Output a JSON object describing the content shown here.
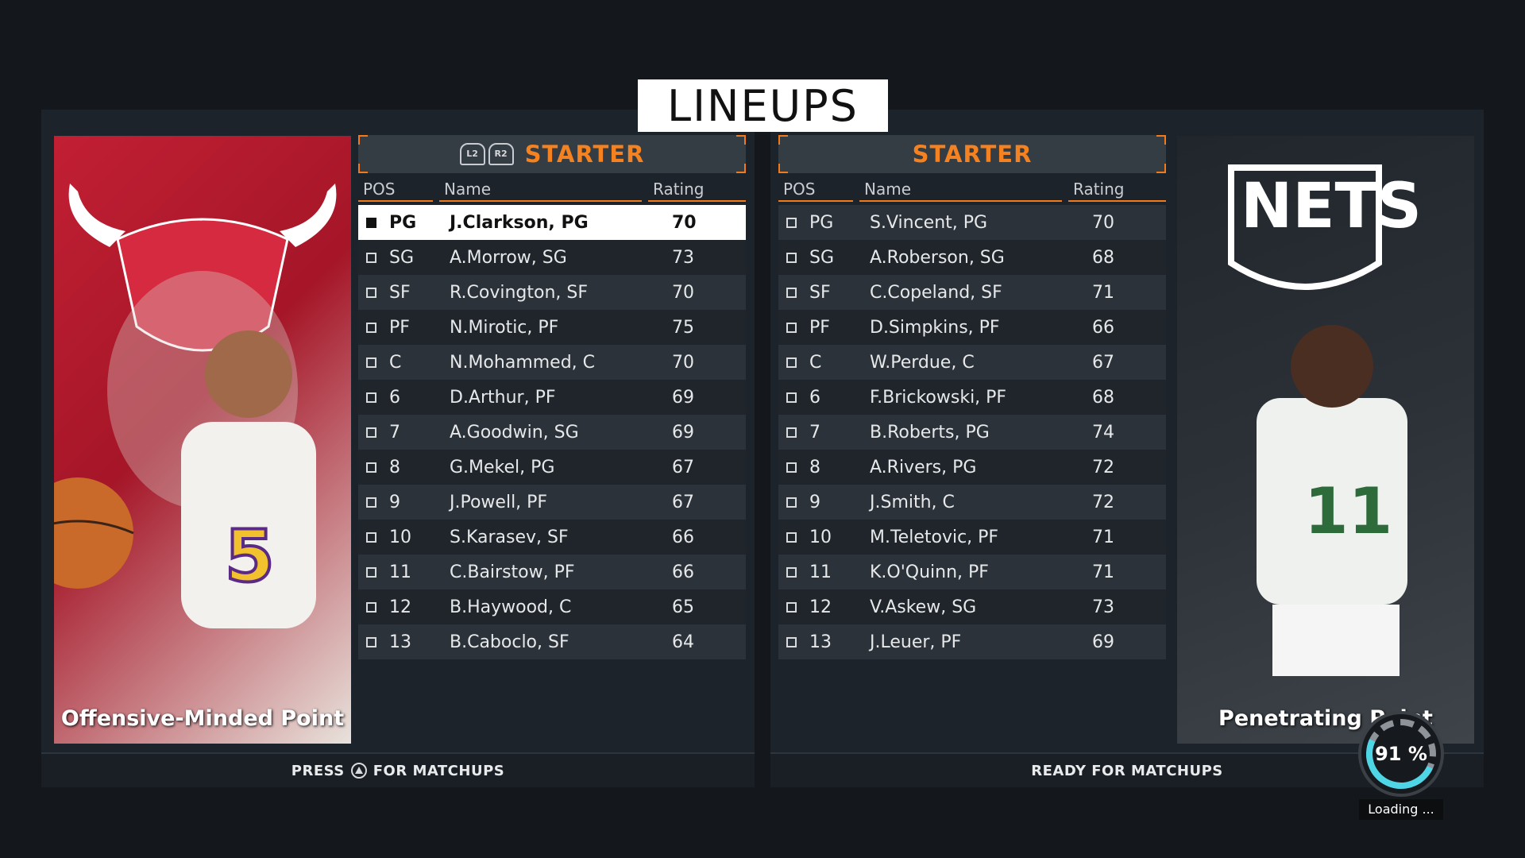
{
  "title": "LINEUPS",
  "left_team": {
    "header_label": "STARTER",
    "bumper_l": "L2",
    "bumper_r": "R2",
    "card_caption": "Offensive-Minded Point",
    "footer_press": "PRESS",
    "footer_action": "FOR MATCHUPS",
    "columns": {
      "pos": "POS",
      "name": "Name",
      "rating": "Rating"
    },
    "players": [
      {
        "pos": "PG",
        "name": "J.Clarkson, PG",
        "rating": "70",
        "selected": true
      },
      {
        "pos": "SG",
        "name": "A.Morrow, SG",
        "rating": "73"
      },
      {
        "pos": "SF",
        "name": "R.Covington, SF",
        "rating": "70"
      },
      {
        "pos": "PF",
        "name": "N.Mirotic, PF",
        "rating": "75"
      },
      {
        "pos": "C",
        "name": "N.Mohammed, C",
        "rating": "70"
      },
      {
        "pos": "6",
        "name": "D.Arthur, PF",
        "rating": "69"
      },
      {
        "pos": "7",
        "name": "A.Goodwin, SG",
        "rating": "69"
      },
      {
        "pos": "8",
        "name": "G.Mekel, PG",
        "rating": "67"
      },
      {
        "pos": "9",
        "name": "J.Powell, PF",
        "rating": "67"
      },
      {
        "pos": "10",
        "name": "S.Karasev, SF",
        "rating": "66"
      },
      {
        "pos": "11",
        "name": "C.Bairstow, PF",
        "rating": "66"
      },
      {
        "pos": "12",
        "name": "B.Haywood, C",
        "rating": "65"
      },
      {
        "pos": "13",
        "name": "B.Caboclo, SF",
        "rating": "64"
      }
    ]
  },
  "right_team": {
    "header_label": "STARTER",
    "card_caption": "Penetrating Point",
    "footer_text": "READY FOR MATCHUPS",
    "columns": {
      "pos": "POS",
      "name": "Name",
      "rating": "Rating"
    },
    "players": [
      {
        "pos": "PG",
        "name": "S.Vincent, PG",
        "rating": "70"
      },
      {
        "pos": "SG",
        "name": "A.Roberson, SG",
        "rating": "68"
      },
      {
        "pos": "SF",
        "name": "C.Copeland, SF",
        "rating": "71"
      },
      {
        "pos": "PF",
        "name": "D.Simpkins, PF",
        "rating": "66"
      },
      {
        "pos": "C",
        "name": "W.Perdue, C",
        "rating": "67"
      },
      {
        "pos": "6",
        "name": "F.Brickowski, PF",
        "rating": "68"
      },
      {
        "pos": "7",
        "name": "B.Roberts, PG",
        "rating": "74"
      },
      {
        "pos": "8",
        "name": "A.Rivers, PG",
        "rating": "72"
      },
      {
        "pos": "9",
        "name": "J.Smith, C",
        "rating": "72"
      },
      {
        "pos": "10",
        "name": "M.Teletovic, PF",
        "rating": "71"
      },
      {
        "pos": "11",
        "name": "K.O'Quinn, PF",
        "rating": "71"
      },
      {
        "pos": "12",
        "name": "V.Askew, SG",
        "rating": "73"
      },
      {
        "pos": "13",
        "name": "J.Leuer, PF",
        "rating": "69"
      }
    ]
  },
  "loading": {
    "percent": "91 %",
    "label": "Loading ..."
  },
  "colors": {
    "accent": "#f58220",
    "selected_row": "#ffffff",
    "loader_fill": "#4fd6e6"
  },
  "icons": {
    "left_logo": "bulls-logo-icon",
    "right_logo": "nets-logo-icon",
    "footer_button": "triangle-button-icon"
  }
}
